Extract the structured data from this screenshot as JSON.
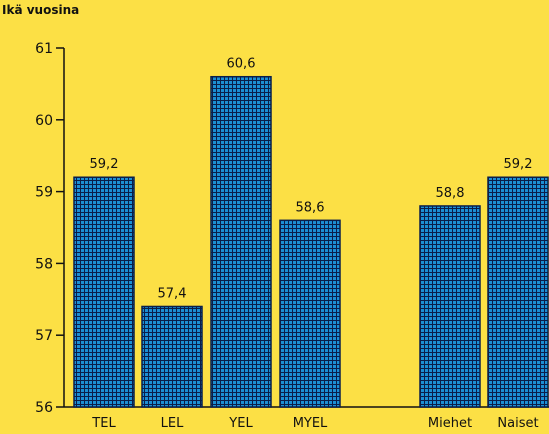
{
  "chart_data": {
    "type": "bar",
    "title": "",
    "xlabel": "",
    "ylabel": "Ikä vuosina",
    "ylim": [
      56,
      61
    ],
    "yticks": [
      "56",
      "57",
      "58",
      "59",
      "60",
      "61"
    ],
    "categories": [
      "TEL",
      "LEL",
      "YEL",
      "MYEL",
      "Miehet",
      "Naiset"
    ],
    "values": [
      59.2,
      57.4,
      60.6,
      58.6,
      58.8,
      59.2
    ],
    "value_labels": [
      "59,2",
      "57,4",
      "60,6",
      "58,6",
      "58,8",
      "59,2"
    ],
    "grid": false,
    "bar_color": "#1C8FD4",
    "bar_hatch_color": "#0A1E4A",
    "background_color": "#FCE045"
  }
}
